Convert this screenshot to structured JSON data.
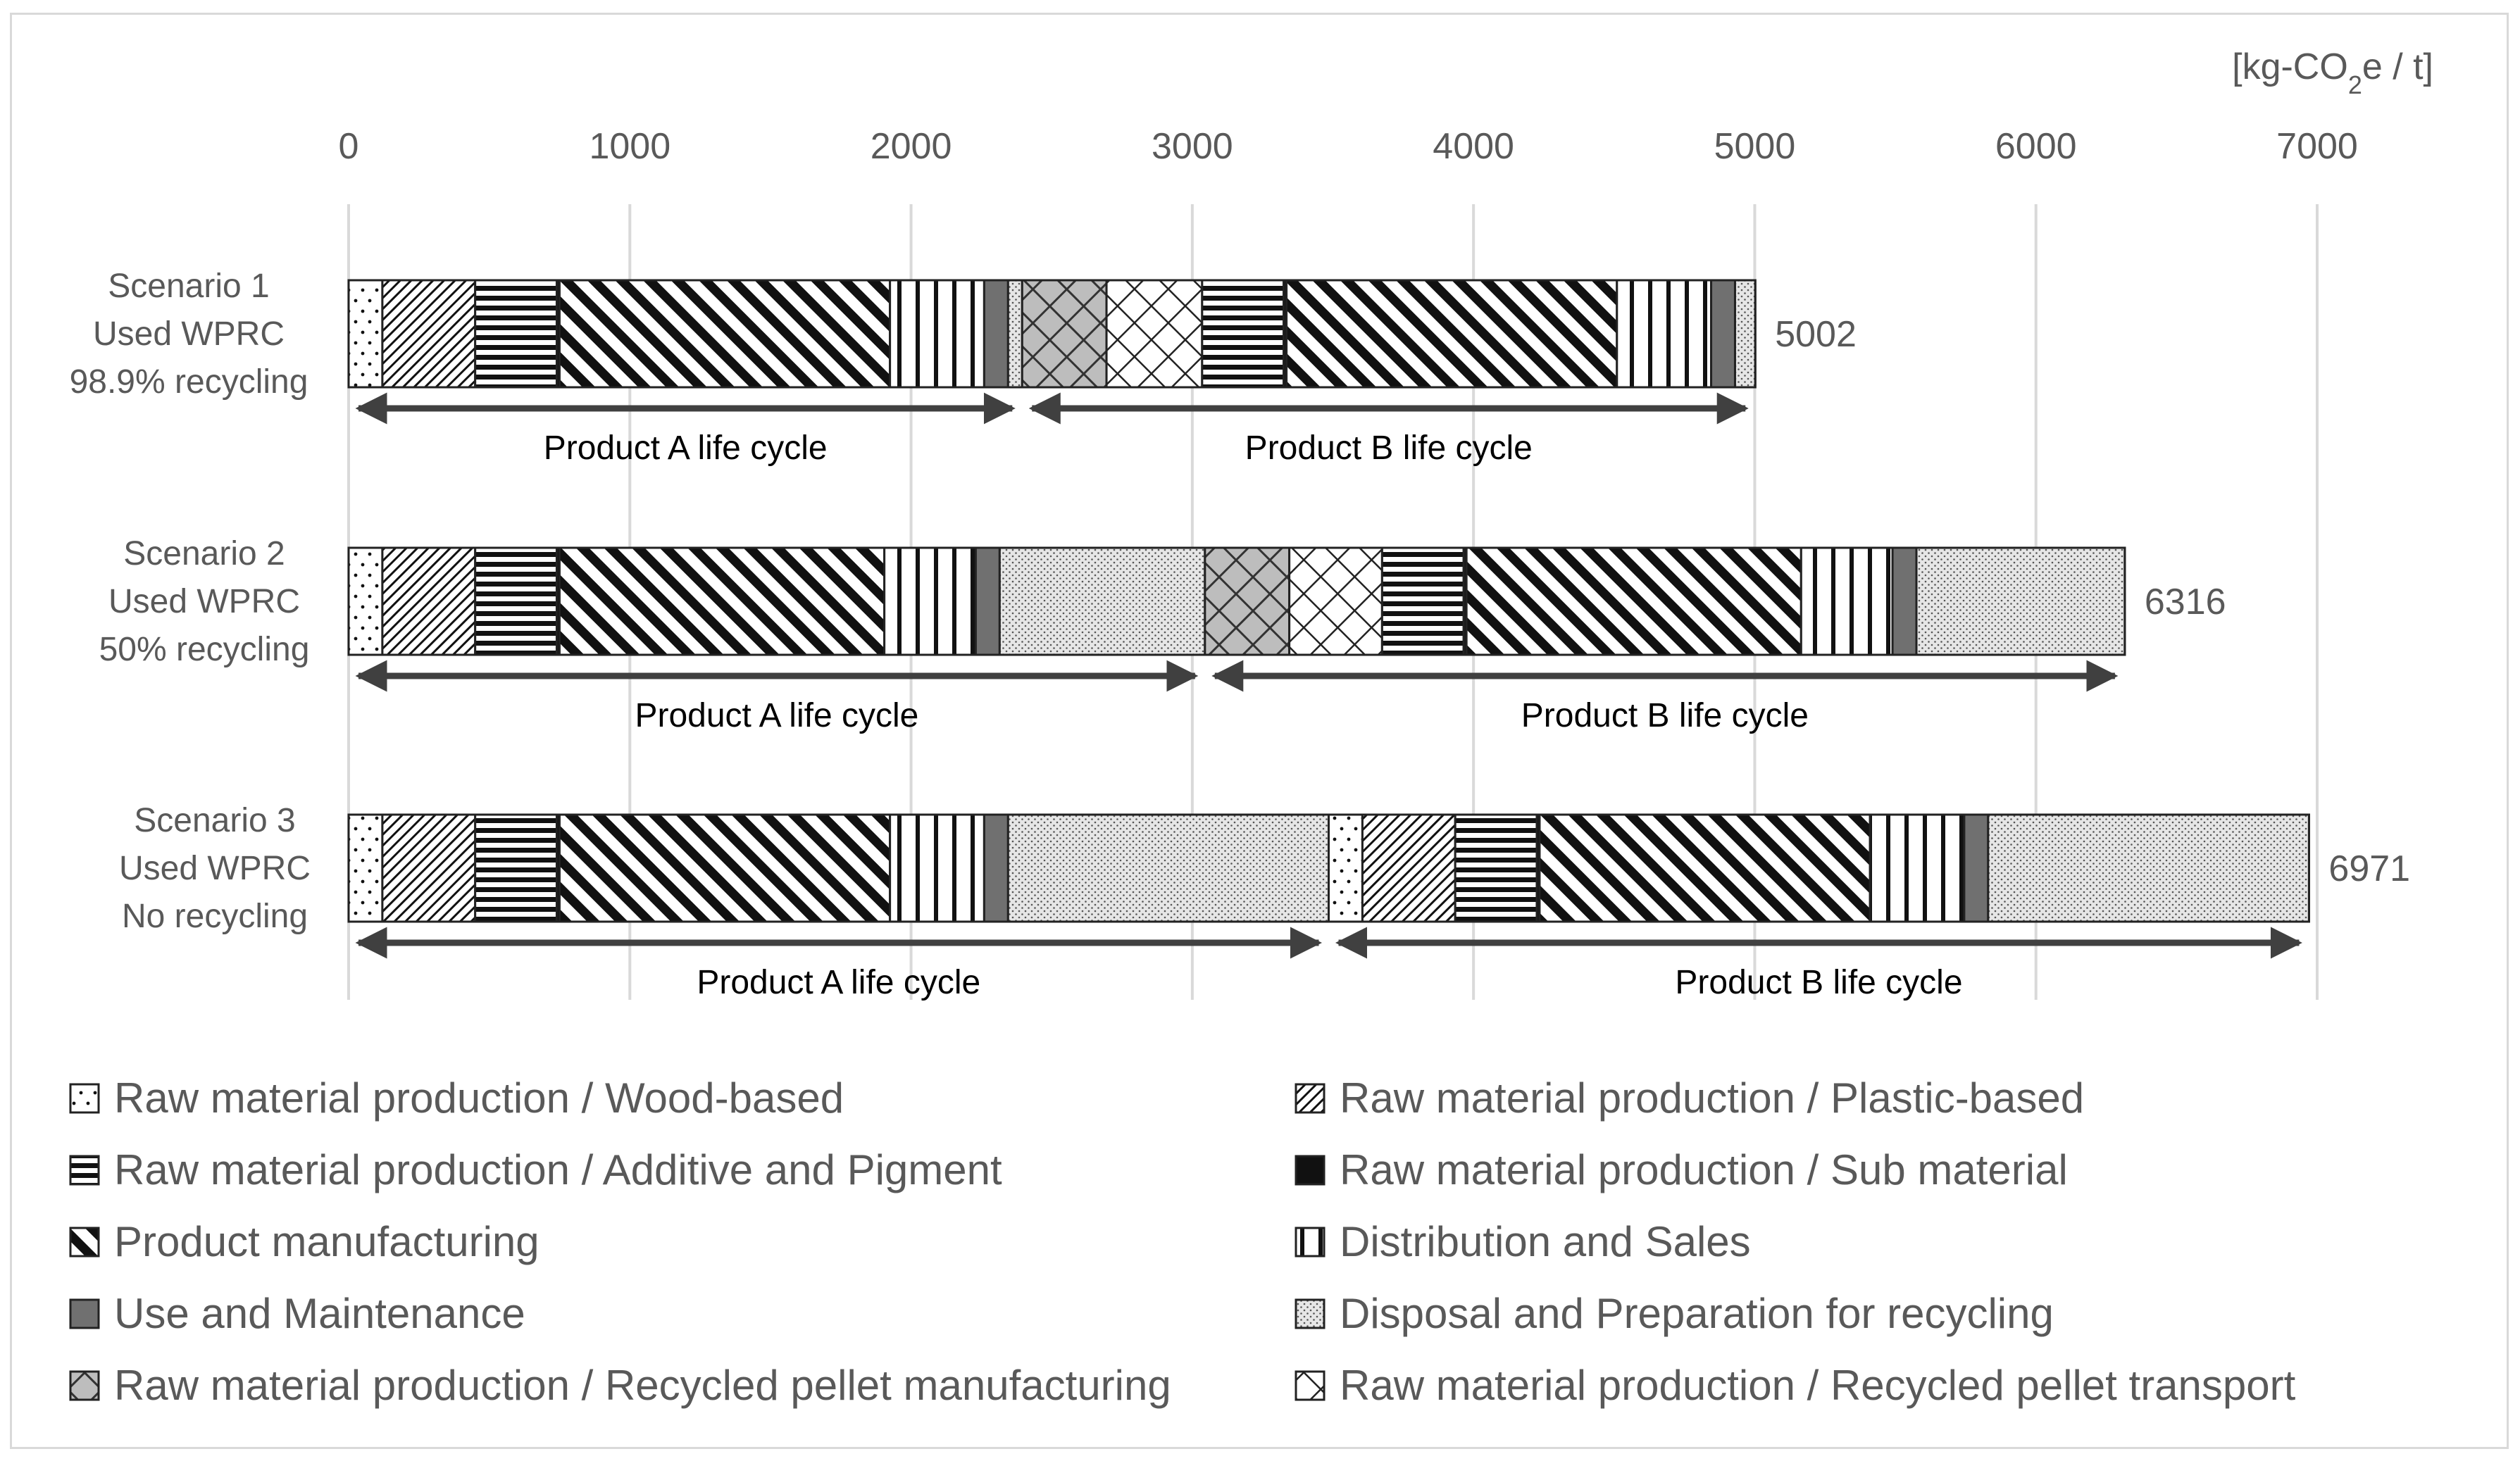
{
  "chart_data": {
    "type": "bar",
    "orientation": "horizontal",
    "stacked": true,
    "unit_label": "[kg-CO2e / t]",
    "unit_parts": [
      "[kg-CO",
      "2",
      "e / t]"
    ],
    "xlim": [
      0,
      7000
    ],
    "xticks": [
      0,
      1000,
      2000,
      3000,
      4000,
      5000,
      6000,
      7000
    ],
    "grid": true,
    "legend_position": "bottom",
    "categories": [
      {
        "name": "Raw material production / Wood-based",
        "pattern": "wood"
      },
      {
        "name": "Raw material production / Plastic-based",
        "pattern": "plastic"
      },
      {
        "name": "Raw material production / Additive and Pigment",
        "pattern": "additive"
      },
      {
        "name": "Raw material production / Sub material",
        "pattern": "sub"
      },
      {
        "name": "Product manufacturing",
        "pattern": "mfg"
      },
      {
        "name": "Distribution and Sales",
        "pattern": "dist"
      },
      {
        "name": "Use and Maintenance",
        "pattern": "use"
      },
      {
        "name": "Disposal and Preparation for recycling",
        "pattern": "disp"
      },
      {
        "name": "Raw material production / Recycled pellet manufacturing",
        "pattern": "rpm"
      },
      {
        "name": "Raw material production / Recycled pellet transport",
        "pattern": "rpt"
      }
    ],
    "scenarios": [
      {
        "label": [
          "Scenario 1",
          "Used WPRC",
          "98.9% recycling"
        ],
        "total": 5002,
        "total_label": "5002",
        "segments": [
          {
            "cat": 0,
            "value": 120
          },
          {
            "cat": 1,
            "value": 330
          },
          {
            "cat": 2,
            "value": 290
          },
          {
            "cat": 3,
            "value": 10
          },
          {
            "cat": 4,
            "value": 1175
          },
          {
            "cat": 5,
            "value": 335
          },
          {
            "cat": 6,
            "value": 85
          },
          {
            "cat": 7,
            "value": 50
          },
          {
            "cat": 8,
            "value": 300
          },
          {
            "cat": 9,
            "value": 340
          },
          {
            "cat": 2,
            "value": 290
          },
          {
            "cat": 3,
            "value": 10
          },
          {
            "cat": 4,
            "value": 1175
          },
          {
            "cat": 5,
            "value": 335
          },
          {
            "cat": 6,
            "value": 85
          },
          {
            "cat": 7,
            "value": 72
          }
        ],
        "lifecycles": [
          {
            "label": "Product A life cycle",
            "start": 0,
            "end": 2395
          },
          {
            "label": "Product B life cycle",
            "start": 2395,
            "end": 5002
          }
        ]
      },
      {
        "label": [
          "Scenario 2",
          "Used WPRC",
          "50% recycling"
        ],
        "total": 6316,
        "total_label": "6316",
        "segments": [
          {
            "cat": 0,
            "value": 120
          },
          {
            "cat": 1,
            "value": 330
          },
          {
            "cat": 2,
            "value": 290
          },
          {
            "cat": 3,
            "value": 10
          },
          {
            "cat": 4,
            "value": 1155
          },
          {
            "cat": 5,
            "value": 325
          },
          {
            "cat": 6,
            "value": 85
          },
          {
            "cat": 7,
            "value": 730
          },
          {
            "cat": 8,
            "value": 300
          },
          {
            "cat": 9,
            "value": 330
          },
          {
            "cat": 2,
            "value": 290
          },
          {
            "cat": 3,
            "value": 10
          },
          {
            "cat": 4,
            "value": 1190
          },
          {
            "cat": 5,
            "value": 325
          },
          {
            "cat": 6,
            "value": 85
          },
          {
            "cat": 7,
            "value": 741
          }
        ],
        "lifecycles": [
          {
            "label": "Product A life cycle",
            "start": 0,
            "end": 3045
          },
          {
            "label": "Product B life cycle",
            "start": 3045,
            "end": 6316
          }
        ]
      },
      {
        "label": [
          "Scenario 3",
          "Used WPRC",
          "No recycling"
        ],
        "total": 6971,
        "total_label": "6971",
        "segments": [
          {
            "cat": 0,
            "value": 120
          },
          {
            "cat": 1,
            "value": 330
          },
          {
            "cat": 2,
            "value": 290
          },
          {
            "cat": 3,
            "value": 10
          },
          {
            "cat": 4,
            "value": 1175
          },
          {
            "cat": 5,
            "value": 335
          },
          {
            "cat": 6,
            "value": 85
          },
          {
            "cat": 7,
            "value": 1140
          },
          {
            "cat": 0,
            "value": 120
          },
          {
            "cat": 1,
            "value": 330
          },
          {
            "cat": 2,
            "value": 290
          },
          {
            "cat": 3,
            "value": 10
          },
          {
            "cat": 4,
            "value": 1175
          },
          {
            "cat": 5,
            "value": 335
          },
          {
            "cat": 6,
            "value": 85
          },
          {
            "cat": 7,
            "value": 1141
          }
        ],
        "lifecycles": [
          {
            "label": "Product A life cycle",
            "start": 0,
            "end": 3485
          },
          {
            "label": "Product B life cycle",
            "start": 3485,
            "end": 6971
          }
        ]
      }
    ]
  }
}
